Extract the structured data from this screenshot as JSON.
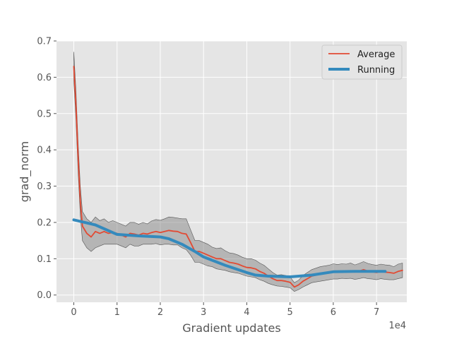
{
  "chart_data": {
    "type": "line",
    "xlabel": "Gradient updates",
    "ylabel": "grad_norm",
    "x_offset_label": "1e4",
    "xlim": [
      -0.4,
      7.7
    ],
    "ylim": [
      -0.02,
      0.7
    ],
    "x_ticks": [
      0,
      1,
      2,
      3,
      4,
      5,
      6,
      7
    ],
    "y_ticks": [
      0.0,
      0.1,
      0.2,
      0.3,
      0.4,
      0.5,
      0.6,
      0.7
    ],
    "x_tick_labels": [
      "0",
      "1",
      "2",
      "3",
      "4",
      "5",
      "6",
      "7"
    ],
    "y_tick_labels": [
      "0.0",
      "0.1",
      "0.2",
      "0.3",
      "0.4",
      "0.5",
      "0.6",
      "0.7"
    ],
    "grid": true,
    "legend_position": "top-right",
    "series": [
      {
        "name": "Average",
        "color": "#e24a33",
        "x": [
          0,
          0.05,
          0.1,
          0.15,
          0.2,
          0.3,
          0.4,
          0.5,
          0.6,
          0.7,
          0.8,
          0.9,
          1.0,
          1.1,
          1.2,
          1.3,
          1.4,
          1.5,
          1.6,
          1.7,
          1.8,
          1.9,
          2.0,
          2.1,
          2.2,
          2.3,
          2.4,
          2.5,
          2.6,
          2.7,
          2.8,
          2.9,
          3.0,
          3.1,
          3.2,
          3.3,
          3.4,
          3.5,
          3.6,
          3.7,
          3.8,
          3.9,
          4.0,
          4.1,
          4.2,
          4.3,
          4.4,
          4.5,
          4.6,
          4.7,
          4.8,
          4.9,
          5.0,
          5.1,
          5.2,
          5.3,
          5.4,
          5.5,
          5.6,
          5.7,
          5.8,
          5.9,
          6.0,
          6.1,
          6.2,
          6.3,
          6.4,
          6.5,
          6.6,
          6.7,
          6.8,
          6.9,
          7.0,
          7.1,
          7.2,
          7.3,
          7.4,
          7.5,
          7.6
        ],
        "y": [
          0.63,
          0.52,
          0.38,
          0.26,
          0.19,
          0.17,
          0.16,
          0.175,
          0.17,
          0.175,
          0.17,
          0.172,
          0.17,
          0.165,
          0.16,
          0.17,
          0.168,
          0.165,
          0.17,
          0.168,
          0.172,
          0.175,
          0.172,
          0.175,
          0.178,
          0.176,
          0.175,
          0.17,
          0.168,
          0.145,
          0.12,
          0.12,
          0.115,
          0.11,
          0.105,
          0.1,
          0.1,
          0.095,
          0.09,
          0.088,
          0.085,
          0.08,
          0.076,
          0.075,
          0.072,
          0.065,
          0.06,
          0.052,
          0.045,
          0.04,
          0.04,
          0.038,
          0.035,
          0.022,
          0.028,
          0.038,
          0.045,
          0.052,
          0.055,
          0.058,
          0.06,
          0.062,
          0.065,
          0.064,
          0.066,
          0.065,
          0.067,
          0.063,
          0.066,
          0.07,
          0.066,
          0.064,
          0.062,
          0.065,
          0.063,
          0.062,
          0.06,
          0.065,
          0.068
        ],
        "lower": [
          0.59,
          0.48,
          0.34,
          0.22,
          0.15,
          0.13,
          0.12,
          0.13,
          0.135,
          0.14,
          0.14,
          0.14,
          0.14,
          0.135,
          0.13,
          0.14,
          0.135,
          0.135,
          0.14,
          0.14,
          0.14,
          0.142,
          0.138,
          0.14,
          0.14,
          0.138,
          0.138,
          0.13,
          0.125,
          0.11,
          0.09,
          0.09,
          0.085,
          0.08,
          0.078,
          0.072,
          0.07,
          0.068,
          0.064,
          0.062,
          0.06,
          0.056,
          0.052,
          0.05,
          0.048,
          0.042,
          0.038,
          0.032,
          0.028,
          0.025,
          0.024,
          0.022,
          0.02,
          0.01,
          0.015,
          0.022,
          0.028,
          0.034,
          0.036,
          0.038,
          0.04,
          0.042,
          0.044,
          0.044,
          0.046,
          0.045,
          0.046,
          0.043,
          0.045,
          0.048,
          0.045,
          0.044,
          0.042,
          0.045,
          0.043,
          0.042,
          0.042,
          0.045,
          0.048
        ],
        "upper": [
          0.67,
          0.56,
          0.42,
          0.3,
          0.23,
          0.21,
          0.2,
          0.215,
          0.205,
          0.21,
          0.2,
          0.205,
          0.2,
          0.195,
          0.19,
          0.2,
          0.2,
          0.195,
          0.2,
          0.196,
          0.204,
          0.208,
          0.206,
          0.21,
          0.215,
          0.214,
          0.212,
          0.21,
          0.21,
          0.18,
          0.15,
          0.15,
          0.145,
          0.14,
          0.132,
          0.128,
          0.13,
          0.122,
          0.116,
          0.114,
          0.11,
          0.104,
          0.1,
          0.1,
          0.096,
          0.088,
          0.082,
          0.072,
          0.062,
          0.055,
          0.056,
          0.054,
          0.05,
          0.034,
          0.041,
          0.054,
          0.062,
          0.07,
          0.074,
          0.078,
          0.08,
          0.082,
          0.086,
          0.084,
          0.086,
          0.085,
          0.088,
          0.083,
          0.087,
          0.092,
          0.087,
          0.084,
          0.082,
          0.085,
          0.083,
          0.082,
          0.078,
          0.085,
          0.088
        ]
      },
      {
        "name": "Running",
        "color": "#348abd",
        "x": [
          0,
          0.5,
          1.0,
          1.5,
          2.0,
          2.2,
          2.5,
          2.8,
          3.0,
          3.5,
          4.0,
          4.2,
          4.5,
          5.0,
          5.5,
          6.0,
          6.5,
          7.0,
          7.2
        ],
        "y": [
          0.207,
          0.193,
          0.167,
          0.163,
          0.16,
          0.155,
          0.14,
          0.12,
          0.105,
          0.082,
          0.062,
          0.055,
          0.052,
          0.05,
          0.055,
          0.064,
          0.065,
          0.065,
          0.065
        ]
      }
    ]
  }
}
